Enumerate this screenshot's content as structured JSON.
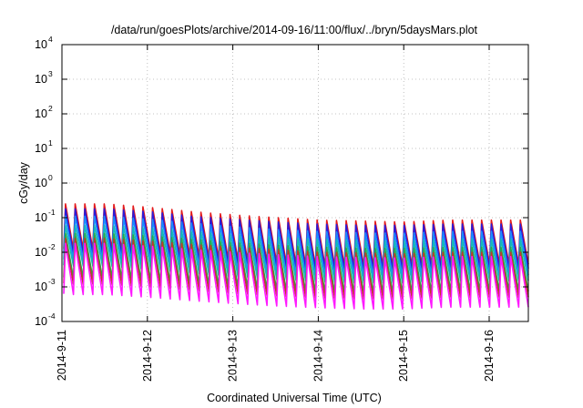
{
  "chart_data": {
    "type": "line",
    "title": "/data/run/goesPlots/archive/2014-09-16/11:00/flux/../bryn/5daysMars.plot",
    "xlabel": "Coordinated Universal Time (UTC)",
    "ylabel": "cGy/day",
    "yscale": "log",
    "ylim": [
      0.0001,
      10000
    ],
    "y_ticks": [
      {
        "base": "10",
        "exp": "-4",
        "value": 0.0001
      },
      {
        "base": "10",
        "exp": "-3",
        "value": 0.001
      },
      {
        "base": "10",
        "exp": "-2",
        "value": 0.01
      },
      {
        "base": "10",
        "exp": "-1",
        "value": 0.1
      },
      {
        "base": "10",
        "exp": "0",
        "value": 1
      },
      {
        "base": "10",
        "exp": "1",
        "value": 10
      },
      {
        "base": "10",
        "exp": "2",
        "value": 100
      },
      {
        "base": "10",
        "exp": "3",
        "value": 1000
      },
      {
        "base": "10",
        "exp": "4",
        "value": 10000
      }
    ],
    "x_ticks": [
      "2014-9-11",
      "2014-9-12",
      "2014-9-13",
      "2014-9-14",
      "2014-9-15",
      "2014-9-16"
    ],
    "xlim": [
      "2014-09-11T00:00",
      "2014-09-16T11:00"
    ],
    "grid": true,
    "legend": "none",
    "series": [
      {
        "color": "#e41a1c",
        "peaks": [
          0.25,
          0.25,
          0.2,
          0.15,
          0.12,
          0.1,
          0.085,
          0.08,
          0.075,
          0.085
        ],
        "troughs": [
          0.012,
          0.012,
          0.01,
          0.008,
          0.006,
          0.005,
          0.004,
          0.004,
          0.004,
          0.0045
        ]
      },
      {
        "color": "#2b1bd9",
        "peaks": [
          0.18,
          0.18,
          0.15,
          0.11,
          0.09,
          0.075,
          0.065,
          0.06,
          0.06,
          0.065
        ],
        "troughs": [
          0.009,
          0.009,
          0.007,
          0.0055,
          0.0045,
          0.0038,
          0.0032,
          0.003,
          0.003,
          0.0034
        ]
      },
      {
        "color": "#1a8cff",
        "peaks": [
          0.11,
          0.11,
          0.09,
          0.07,
          0.055,
          0.045,
          0.04,
          0.036,
          0.035,
          0.04
        ],
        "troughs": [
          0.006,
          0.006,
          0.005,
          0.004,
          0.003,
          0.0025,
          0.002,
          0.002,
          0.002,
          0.0022
        ]
      },
      {
        "color": "#16b8b8",
        "peaks": [
          0.06,
          0.06,
          0.05,
          0.04,
          0.032,
          0.027,
          0.024,
          0.022,
          0.021,
          0.024
        ],
        "troughs": [
          0.004,
          0.004,
          0.0032,
          0.0025,
          0.002,
          0.0017,
          0.0014,
          0.0013,
          0.0013,
          0.0015
        ]
      },
      {
        "color": "#2aa84a",
        "peaks": [
          0.035,
          0.035,
          0.03,
          0.024,
          0.019,
          0.016,
          0.014,
          0.013,
          0.013,
          0.014
        ],
        "troughs": [
          0.0018,
          0.0018,
          0.0015,
          0.0012,
          0.001,
          0.0008,
          0.0007,
          0.00065,
          0.00065,
          0.00075
        ]
      },
      {
        "color": "#c0392b",
        "peaks": [
          0.025,
          0.025,
          0.021,
          0.017,
          0.014,
          0.012,
          0.01,
          0.0095,
          0.009,
          0.01
        ],
        "troughs": [
          0.0012,
          0.0012,
          0.001,
          0.0008,
          0.00065,
          0.00055,
          0.00048,
          0.00045,
          0.00045,
          0.0005
        ]
      },
      {
        "color": "#ff19ff",
        "peaks": [
          0.018,
          0.018,
          0.015,
          0.012,
          0.01,
          0.0085,
          0.0075,
          0.007,
          0.0068,
          0.0075
        ],
        "troughs": [
          0.0006,
          0.0006,
          0.0005,
          0.0004,
          0.00033,
          0.00028,
          0.00025,
          0.00023,
          0.00023,
          0.00026
        ]
      }
    ]
  }
}
